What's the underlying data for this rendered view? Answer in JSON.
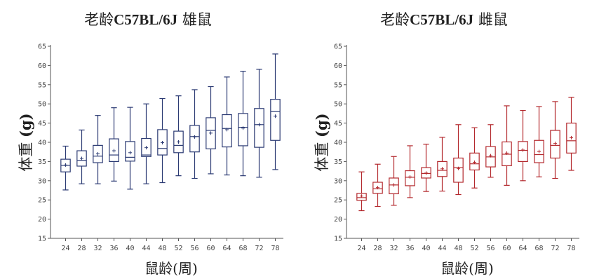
{
  "chart_data": [
    {
      "type": "box",
      "title_cn_prefix": "老龄",
      "title_latin": "C57BL/6J",
      "title_cn_suffix": " 雄鼠",
      "xlabel": "鼠龄(周)",
      "ylabel_cn": "体重 ",
      "ylabel_unit": "(g)",
      "ylim": [
        15,
        65
      ],
      "yticks": [
        15,
        20,
        25,
        30,
        35,
        40,
        45,
        50,
        55,
        60,
        65
      ],
      "categories": [
        "24",
        "28",
        "32",
        "36",
        "40",
        "44",
        "48",
        "52",
        "56",
        "60",
        "64",
        "68",
        "72",
        "78"
      ],
      "color": "#2b3a73",
      "grid": false,
      "boxes": [
        {
          "min": 27.6,
          "q1": 32.3,
          "median": 34.0,
          "q3": 35.6,
          "max": 39.0,
          "mean": 34.1
        },
        {
          "min": 29.2,
          "q1": 33.8,
          "median": 35.3,
          "q3": 37.8,
          "max": 43.2,
          "mean": 35.8
        },
        {
          "min": 29.2,
          "q1": 34.7,
          "median": 36.4,
          "q3": 39.2,
          "max": 47.0,
          "mean": 37.0
        },
        {
          "min": 29.9,
          "q1": 35.0,
          "median": 36.7,
          "q3": 40.9,
          "max": 49.0,
          "mean": 37.8
        },
        {
          "min": 27.8,
          "q1": 35.1,
          "median": 36.1,
          "q3": 40.2,
          "max": 49.1,
          "mean": 37.3
        },
        {
          "min": 29.2,
          "q1": 36.3,
          "median": 36.7,
          "q3": 41.0,
          "max": 50.0,
          "mean": 38.6
        },
        {
          "min": 29.5,
          "q1": 36.7,
          "median": 38.4,
          "q3": 43.3,
          "max": 51.4,
          "mean": 39.9
        },
        {
          "min": 31.3,
          "q1": 37.3,
          "median": 39.2,
          "q3": 42.9,
          "max": 52.1,
          "mean": 40.1
        },
        {
          "min": 30.6,
          "q1": 37.5,
          "median": 41.5,
          "q3": 44.4,
          "max": 53.7,
          "mean": 41.4
        },
        {
          "min": 31.8,
          "q1": 38.3,
          "median": 43.1,
          "q3": 46.4,
          "max": 54.5,
          "mean": 42.4
        },
        {
          "min": 31.5,
          "q1": 38.8,
          "median": 43.6,
          "q3": 47.2,
          "max": 57.0,
          "mean": 43.3
        },
        {
          "min": 31.3,
          "q1": 39.1,
          "median": 43.9,
          "q3": 47.5,
          "max": 58.5,
          "mean": 43.7
        },
        {
          "min": 30.9,
          "q1": 38.7,
          "median": 44.6,
          "q3": 48.8,
          "max": 59.0,
          "mean": 44.6
        },
        {
          "min": 32.9,
          "q1": 40.5,
          "median": 48.0,
          "q3": 51.2,
          "max": 63.0,
          "mean": 46.8
        }
      ]
    },
    {
      "type": "box",
      "title_cn_prefix": "老龄",
      "title_latin": "C57BL/6J",
      "title_cn_suffix": " 雌鼠",
      "xlabel": "鼠龄(周)",
      "ylabel_cn": "体重 ",
      "ylabel_unit": "(g)",
      "ylim": [
        15,
        65
      ],
      "yticks": [
        15,
        20,
        25,
        30,
        35,
        40,
        45,
        50,
        55,
        60,
        65
      ],
      "categories": [
        "24",
        "28",
        "32",
        "36",
        "40",
        "44",
        "48",
        "52",
        "56",
        "60",
        "64",
        "68",
        "72",
        "78"
      ],
      "color": "#b3282d",
      "grid": false,
      "boxes": [
        {
          "min": 22.2,
          "q1": 24.9,
          "median": 25.6,
          "q3": 26.7,
          "max": 32.3,
          "mean": 26.0
        },
        {
          "min": 23.3,
          "q1": 26.7,
          "median": 27.9,
          "q3": 29.6,
          "max": 34.3,
          "mean": 28.2
        },
        {
          "min": 23.6,
          "q1": 26.6,
          "median": 28.9,
          "q3": 30.7,
          "max": 36.3,
          "mean": 28.9
        },
        {
          "min": 25.6,
          "q1": 28.7,
          "median": 30.9,
          "q3": 32.6,
          "max": 39.1,
          "mean": 31.0
        },
        {
          "min": 27.2,
          "q1": 30.7,
          "median": 31.9,
          "q3": 33.4,
          "max": 39.5,
          "mean": 32.0
        },
        {
          "min": 27.3,
          "q1": 31.1,
          "median": 32.7,
          "q3": 35.0,
          "max": 41.3,
          "mean": 33.1
        },
        {
          "min": 26.4,
          "q1": 29.6,
          "median": 33.4,
          "q3": 35.9,
          "max": 44.6,
          "mean": 33.2
        },
        {
          "min": 28.1,
          "q1": 32.8,
          "median": 34.4,
          "q3": 37.2,
          "max": 43.8,
          "mean": 34.8
        },
        {
          "min": 30.9,
          "q1": 33.6,
          "median": 36.2,
          "q3": 38.9,
          "max": 44.6,
          "mean": 36.5
        },
        {
          "min": 28.8,
          "q1": 33.9,
          "median": 36.9,
          "q3": 40.1,
          "max": 49.5,
          "mean": 37.2
        },
        {
          "min": 30.0,
          "q1": 35.0,
          "median": 37.9,
          "q3": 40.2,
          "max": 48.3,
          "mean": 38.0
        },
        {
          "min": 31.0,
          "q1": 34.7,
          "median": 36.8,
          "q3": 40.5,
          "max": 49.3,
          "mean": 37.6
        },
        {
          "min": 30.6,
          "q1": 35.9,
          "median": 39.2,
          "q3": 43.1,
          "max": 50.6,
          "mean": 39.7
        },
        {
          "min": 32.7,
          "q1": 37.2,
          "median": 40.4,
          "q3": 45.0,
          "max": 51.7,
          "mean": 41.2
        }
      ]
    }
  ]
}
